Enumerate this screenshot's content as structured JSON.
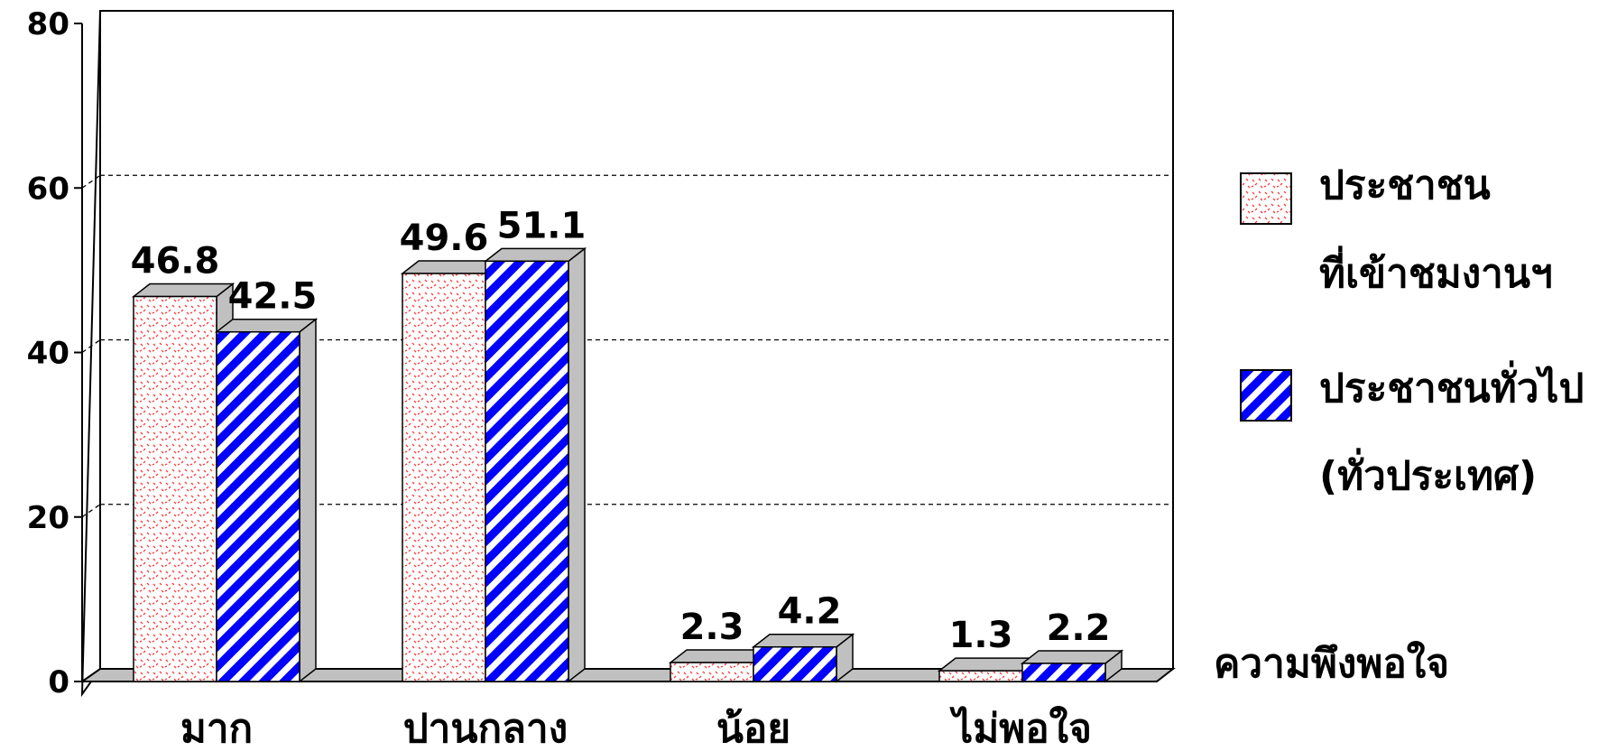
{
  "chart_data": {
    "type": "bar",
    "categories": [
      "มาก",
      "ปานกลาง",
      "น้อย",
      "ไม่พอใจ"
    ],
    "series": [
      {
        "name": "ประชาชน ที่เข้าชมงานฯ",
        "legend_lines": [
          "ประชาชน",
          "ที่เข้าชมงานฯ"
        ],
        "values": [
          46.8,
          49.6,
          2.3,
          1.3
        ],
        "color": "#ff4d4d",
        "pattern": "dotted-pink"
      },
      {
        "name": "ประชาชนทั่วไป (ทั่วประเทศ)",
        "legend_lines": [
          "ประชาชนทั่วไป",
          "(ทั่วประเทศ)"
        ],
        "values": [
          42.5,
          51.1,
          4.2,
          2.2
        ],
        "color": "#0000ff",
        "pattern": "diagonal-blue-stripes"
      }
    ],
    "value_labels": [
      [
        "46.8",
        "49.6",
        "2.3",
        "1.3"
      ],
      [
        "42.5",
        "51.1",
        "4.2",
        "2.2"
      ]
    ],
    "y_ticks": [
      "0",
      "20",
      "40",
      "60",
      "80"
    ],
    "ylim": [
      0,
      80
    ],
    "xlabel": "ความพึงพอใจ",
    "ylabel": "",
    "title": "",
    "grid": true,
    "legend_position": "right",
    "colors": {
      "side": "#c0c0c0",
      "top": "#c0c0c0",
      "outline": "#000000",
      "floor": "#c0c0c0"
    }
  }
}
